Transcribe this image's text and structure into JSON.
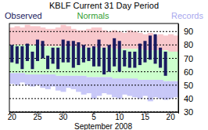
{
  "chart_data": {
    "type": "bar",
    "title": "KBLF Current 31 Day Period",
    "x_label": "September 2008",
    "categories": [
      "20",
      null,
      null,
      null,
      null,
      "25",
      null,
      null,
      null,
      null,
      "30",
      null,
      null,
      null,
      null,
      null,
      "5",
      null,
      null,
      null,
      null,
      "10",
      null,
      null,
      null,
      null,
      "15",
      null,
      null,
      null,
      null,
      "20",
      null
    ],
    "series": [
      {
        "name": "Observed",
        "color": "#1a1a60",
        "values": [
          80,
          79,
          79,
          81,
          75,
          84,
          83,
          72,
          78,
          78,
          84,
          83,
          83,
          82,
          80,
          78,
          79,
          84,
          78,
          80,
          85,
          83,
          76,
          75,
          75,
          81,
          83,
          87,
          88,
          78,
          75,
          null,
          null
        ],
        "low": [
          67,
          66,
          62,
          68,
          62,
          68,
          70,
          62,
          66,
          62,
          67,
          67,
          63,
          65,
          67,
          68,
          64,
          64,
          58,
          60,
          64,
          60,
          64,
          63,
          63,
          65,
          67,
          69,
          66,
          63,
          57,
          null,
          null
        ]
      },
      {
        "name": "Normals",
        "color": "#ccffcc",
        "values": [
          80,
          80,
          80,
          80,
          80,
          80,
          79,
          79,
          79,
          79,
          79,
          79,
          79,
          78,
          78,
          78,
          78,
          78,
          78,
          78,
          77,
          77,
          77,
          77,
          77,
          77,
          76,
          76,
          76,
          76,
          76,
          75,
          75
        ],
        "low": [
          59,
          59,
          59,
          58,
          58,
          58,
          58,
          58,
          58,
          57,
          57,
          57,
          57,
          57,
          57,
          56,
          56,
          56,
          56,
          56,
          55,
          55,
          55,
          55,
          55,
          54,
          54,
          54,
          54,
          54,
          53,
          53,
          53
        ]
      },
      {
        "name": "Records",
        "color": "#c8c8f8",
        "values": [
          93,
          94,
          93,
          95,
          94,
          94,
          93,
          92,
          92,
          93,
          95,
          94,
          92,
          91,
          91,
          92,
          93,
          93,
          91,
          90,
          91,
          90,
          89,
          91,
          90,
          89,
          88,
          89,
          87,
          88,
          87,
          88,
          87
        ],
        "low": [
          51,
          50,
          52,
          50,
          49,
          50,
          48,
          47,
          49,
          46,
          45,
          48,
          47,
          45,
          43,
          44,
          40,
          42,
          44,
          43,
          41,
          40,
          43,
          42,
          41,
          40,
          42,
          38,
          41,
          40,
          39,
          40,
          41
        ]
      }
    ],
    "ylim": [
      30,
      96
    ],
    "yticks": [
      30,
      40,
      50,
      60,
      70,
      80,
      90
    ],
    "grid": true
  }
}
